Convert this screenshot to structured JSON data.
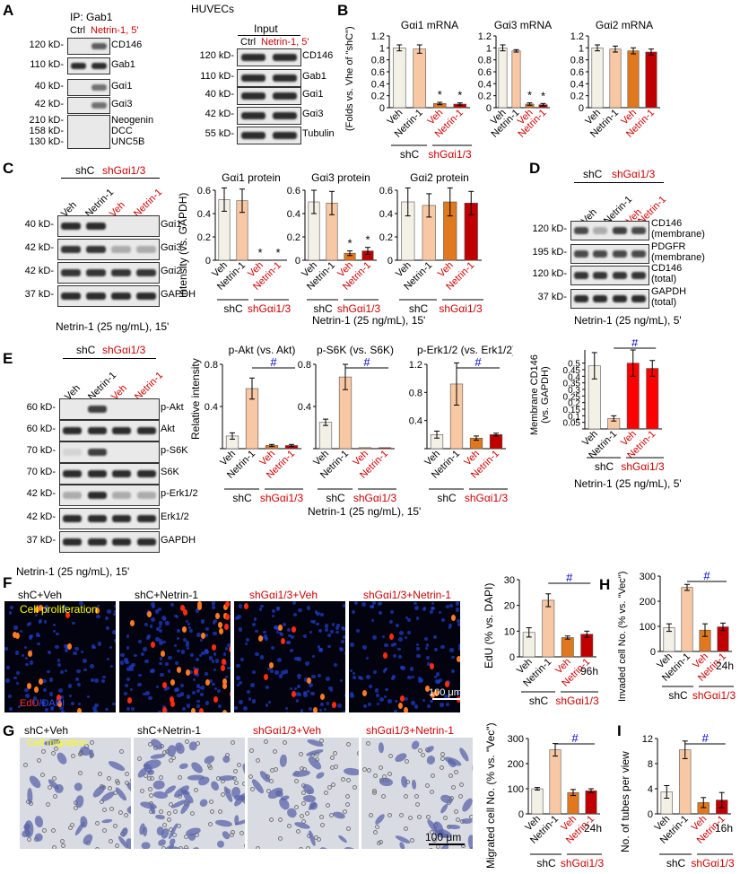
{
  "panel_A": {
    "letter": "A",
    "title": "HUVECs",
    "ip_label": "IP: Gab1",
    "input_label": "Input",
    "col_ctrl": "Ctrl",
    "col_netrin": "Netrin-1, 5'",
    "ip_rows": [
      {
        "kd": "120 kD-",
        "name": "CD146"
      },
      {
        "kd": "110 kD-",
        "name": "Gab1"
      },
      {
        "kd": "40 kD-",
        "name": "Gαi1"
      },
      {
        "kd": "42 kD-",
        "name": "Gαi3"
      }
    ],
    "ip_last_kd": [
      "210 kD-",
      "158 kD-",
      "130 kD-"
    ],
    "ip_last_names": [
      "Neogenin",
      "DCC",
      "UNC5B"
    ],
    "input_rows": [
      {
        "kd": "120 kD-",
        "name": "CD146"
      },
      {
        "kd": "110 kD-",
        "name": "Gab1"
      },
      {
        "kd": "40 kD-",
        "name": "Gαi1"
      },
      {
        "kd": "42 kD-",
        "name": "Gαi3"
      },
      {
        "kd": "55 kD-",
        "name": "Tubulin"
      }
    ]
  },
  "panel_B": {
    "letter": "B",
    "ylabel": "(Folds vs. Vhe of \"shC\")",
    "group_shC": "shC",
    "group_sh": "shGαi1/3"
  },
  "panel_C": {
    "letter": "C",
    "group_shC": "shC",
    "group_sh": "shGαi1/3",
    "lanes": [
      "Veh",
      "Netrin-1",
      "Veh",
      "Netrin-1"
    ],
    "rows": [
      {
        "kd": "40 kD-",
        "name": "Gαi1"
      },
      {
        "kd": "42 kD-",
        "name": "Gαi3"
      },
      {
        "kd": "42 kD-",
        "name": "Gαi2"
      },
      {
        "kd": "37 kD-",
        "name": "GAPDH"
      }
    ],
    "caption": "Netrin-1 (25 ng/mL), 15'",
    "ylabel": "Intensity (vs. GAPDH)",
    "chart_caption": "Netrin-1 (25 ng/mL), 15'"
  },
  "panel_D": {
    "letter": "D",
    "group_shC": "shC",
    "group_sh": "shGαi1/3",
    "rows": [
      {
        "kd": "120 kD-",
        "name": "CD146\n(membrane)"
      },
      {
        "kd": "195 kD-",
        "name": "PDGFR\n(membrane)"
      },
      {
        "kd": "120 kD-",
        "name": "CD146\n(total)"
      },
      {
        "kd": "37 kD-",
        "name": "GAPDH\n(total)"
      }
    ],
    "caption": "Netrin-1 (25 ng/mL), 5'",
    "ylabel": "Membrane CD146\n(vs. GAPDH)",
    "chart_caption": "Netrin-1 (25 ng/mL), 5'"
  },
  "panel_E": {
    "letter": "E",
    "group_shC": "shC",
    "group_sh": "shGαi1/3",
    "rows": [
      {
        "kd": "60 kD-",
        "name": "p-Akt"
      },
      {
        "kd": "60 kD-",
        "name": "Akt"
      },
      {
        "kd": "70 kD-",
        "name": "p-S6K"
      },
      {
        "kd": "70 kD-",
        "name": "S6K"
      },
      {
        "kd": "42 kD-",
        "name": "p-Erk1/2"
      },
      {
        "kd": "42 kD-",
        "name": "Erk1/2"
      },
      {
        "kd": "37 kD-",
        "name": "GAPDH"
      }
    ],
    "caption": "Netrin-1 (25 ng/mL), 15'",
    "ylabel": "Relative intensity",
    "chart_caption": "Netrin-1 (25 ng/mL), 15'"
  },
  "panel_F": {
    "letter": "F",
    "image_titles": [
      "shC+Veh",
      "shC+Netrin-1",
      "shGαi1/3+Veh",
      "shGαi1/3+Netrin-1"
    ],
    "overlay": "Cell proliferation",
    "stain_edu": "EdU",
    "stain_dapi": "/DAPI",
    "scale": "100 μm",
    "ylabel": "EdU (% vs. DAPI)",
    "time": "96h"
  },
  "panel_G": {
    "letter": "G",
    "image_titles": [
      "shC+Veh",
      "shC+Netrin-1",
      "shGαi1/3+Veh",
      "shGαi1/3+Netrin-1"
    ],
    "overlay": "Cell migration",
    "scale": "100 μm",
    "ylabel": "Migrated cell No. (% vs. \"Vec\")",
    "time": "24h"
  },
  "panel_H": {
    "letter": "H",
    "ylabel": "Invaded cell No. (% vs. \"Vec\")",
    "time": "24h"
  },
  "panel_I": {
    "letter": "I",
    "ylabel": "No. of tubes per view",
    "time": "16h"
  },
  "colors": {
    "veh_shC": "#f3f0e6",
    "netrin_shC": "#f8c8a4",
    "veh_sh": "#e07820",
    "netrin_sh": "#c00000",
    "red_text": "#cc0000",
    "hash": "#0000cc",
    "bright_red": "#ff0000"
  },
  "chart_data": [
    {
      "id": "B1",
      "type": "bar",
      "title": "Gαi1 mRNA",
      "categories": [
        "Veh",
        "Netrin-1",
        "Veh",
        "Netrin-1"
      ],
      "values": [
        1.0,
        0.98,
        0.07,
        0.06
      ],
      "errors": [
        0.05,
        0.07,
        0.02,
        0.02
      ],
      "ylim": [
        0,
        1.2
      ],
      "yticks": [
        0,
        0.2,
        0.4,
        0.6,
        0.8,
        1.0,
        1.2
      ],
      "marks": [
        "",
        "",
        "*",
        "*"
      ]
    },
    {
      "id": "B2",
      "type": "bar",
      "title": "Gαi3 mRNA",
      "categories": [
        "Veh",
        "Netrin-1",
        "Veh",
        "Netrin-1"
      ],
      "values": [
        1.0,
        0.95,
        0.06,
        0.05
      ],
      "errors": [
        0.05,
        0.02,
        0.02,
        0.02
      ],
      "ylim": [
        0,
        1.2
      ],
      "yticks": [
        0,
        0.2,
        0.4,
        0.6,
        0.8,
        1.0,
        1.2
      ],
      "marks": [
        "",
        "",
        "*",
        "*"
      ]
    },
    {
      "id": "B3",
      "type": "bar",
      "title": "Gαi2 mRNA",
      "categories": [
        "Veh",
        "Netrin-1",
        "Veh",
        "Netrin-1"
      ],
      "values": [
        1.0,
        0.98,
        0.95,
        0.93
      ],
      "errors": [
        0.05,
        0.05,
        0.05,
        0.05
      ],
      "ylim": [
        0,
        1.2
      ],
      "yticks": [
        0,
        0.2,
        0.4,
        0.6,
        0.8,
        1.0,
        1.2
      ],
      "marks": [
        "",
        "",
        "",
        ""
      ]
    },
    {
      "id": "C1",
      "type": "bar",
      "title": "Gαi1 protein",
      "categories": [
        "Veh",
        "Netrin-1",
        "Veh",
        "Netrin-1"
      ],
      "values": [
        0.52,
        0.51,
        0.0,
        0.0
      ],
      "errors": [
        0.1,
        0.1,
        0,
        0
      ],
      "ylim": [
        0,
        0.6
      ],
      "yticks": [
        0,
        0.2,
        0.4,
        0.6
      ],
      "marks": [
        "",
        "",
        "*",
        "*"
      ]
    },
    {
      "id": "C2",
      "type": "bar",
      "title": "Gαi3 protein",
      "categories": [
        "Veh",
        "Netrin-1",
        "Veh",
        "Netrin-1"
      ],
      "values": [
        0.5,
        0.49,
        0.06,
        0.08
      ],
      "errors": [
        0.1,
        0.1,
        0.02,
        0.03
      ],
      "ylim": [
        0,
        0.6
      ],
      "yticks": [
        0,
        0.2,
        0.4,
        0.6
      ],
      "marks": [
        "",
        "",
        "*",
        "*"
      ]
    },
    {
      "id": "C3",
      "type": "bar",
      "title": "Gαi2 protein",
      "categories": [
        "Veh",
        "Netrin-1",
        "Veh",
        "Netrin-1"
      ],
      "values": [
        0.5,
        0.47,
        0.5,
        0.49
      ],
      "errors": [
        0.12,
        0.1,
        0.12,
        0.1
      ],
      "ylim": [
        0,
        0.6
      ],
      "yticks": [
        0,
        0.2,
        0.4,
        0.6
      ],
      "marks": [
        "",
        "",
        "",
        ""
      ]
    },
    {
      "id": "D1",
      "type": "bar",
      "title": "",
      "categories": [
        "Veh",
        "Netrin-1",
        "Veh",
        "Netrin-1"
      ],
      "values": [
        0.48,
        0.08,
        0.5,
        0.46
      ],
      "errors": [
        0.1,
        0.02,
        0.1,
        0.06
      ],
      "ylim": [
        0,
        0.6
      ],
      "yticks": [
        0,
        0.05,
        0.1,
        0.15,
        0.2,
        0.25,
        0.3,
        0.35,
        0.4,
        0.45,
        0.5
      ],
      "ytick_labels": [
        "",
        "0.05",
        "0.1",
        "0.15",
        "0.2",
        "0.25",
        "0.3",
        "0.35",
        "0.4",
        "0.45",
        "0.5"
      ],
      "hash": "#"
    },
    {
      "id": "E1",
      "type": "bar",
      "title": "p-Akt (vs. Akt)",
      "categories": [
        "Veh",
        "Netrin-1",
        "Veh",
        "Netrin-1"
      ],
      "values": [
        0.12,
        0.57,
        0.03,
        0.03
      ],
      "errors": [
        0.03,
        0.1,
        0.01,
        0.01
      ],
      "ylim": [
        0,
        0.8
      ],
      "yticks": [
        0,
        0.4,
        0.8
      ],
      "hash": "#"
    },
    {
      "id": "E2",
      "type": "bar",
      "title": "p-S6K (vs. S6K)",
      "categories": [
        "Veh",
        "Netrin-1",
        "Veh",
        "Netrin-1"
      ],
      "values": [
        0.25,
        0.68,
        0.01,
        0.01
      ],
      "errors": [
        0.03,
        0.12,
        0,
        0
      ],
      "ylim": [
        0,
        0.8
      ],
      "yticks": [
        0,
        0.4,
        0.8
      ],
      "hash": "#"
    },
    {
      "id": "E3",
      "type": "bar",
      "title": "p-Erk1/2 (vs. Erk1/2)",
      "categories": [
        "Veh",
        "Netrin-1",
        "Veh",
        "Netrin-1"
      ],
      "values": [
        0.2,
        0.92,
        0.15,
        0.2
      ],
      "errors": [
        0.05,
        0.3,
        0.03,
        0.02
      ],
      "ylim": [
        0,
        1.2
      ],
      "yticks": [
        0,
        0.4,
        0.8,
        1.2
      ],
      "hash": "#"
    },
    {
      "id": "F1",
      "type": "bar",
      "title": "",
      "categories": [
        "Veh",
        "Netrin-1",
        "Veh",
        "Netrin-1"
      ],
      "values": [
        9.5,
        22,
        7.5,
        8.8
      ],
      "errors": [
        1.8,
        2.5,
        0.6,
        1.2
      ],
      "ylim": [
        0,
        30
      ],
      "yticks": [
        0,
        10,
        20,
        30
      ],
      "hash": "#"
    },
    {
      "id": "H1",
      "type": "bar",
      "title": "",
      "categories": [
        "Veh",
        "Netrin-1",
        "Veh",
        "Netrin-1"
      ],
      "values": [
        95,
        255,
        85,
        98
      ],
      "errors": [
        15,
        12,
        25,
        15
      ],
      "ylim": [
        0,
        300
      ],
      "yticks": [
        0,
        100,
        200,
        300
      ],
      "hash": "#"
    },
    {
      "id": "G1",
      "type": "bar",
      "title": "",
      "categories": [
        "Veh",
        "Netrin-1",
        "Veh",
        "Netrin-1"
      ],
      "values": [
        100,
        255,
        85,
        92
      ],
      "errors": [
        5,
        25,
        12,
        8
      ],
      "ylim": [
        0,
        300
      ],
      "yticks": [
        0,
        100,
        200,
        300
      ],
      "hash": "#"
    },
    {
      "id": "I1",
      "type": "bar",
      "title": "",
      "categories": [
        "Veh",
        "Netrin-1",
        "Veh",
        "Netrin-1"
      ],
      "values": [
        3.5,
        10.2,
        1.8,
        2.2
      ],
      "errors": [
        1,
        1.4,
        0.8,
        1.2
      ],
      "ylim": [
        0,
        12
      ],
      "yticks": [
        0,
        4,
        8,
        12
      ],
      "hash": "#"
    }
  ]
}
